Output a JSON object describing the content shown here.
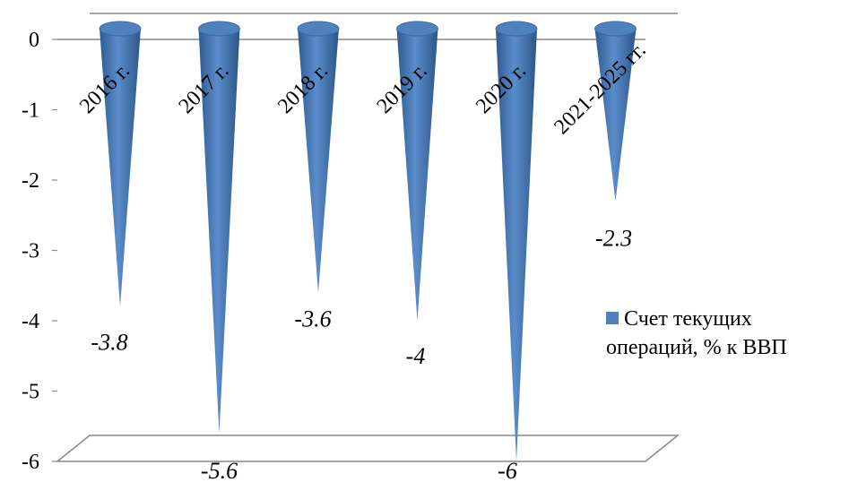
{
  "chart_data": {
    "type": "bar",
    "categories": [
      "2016 г.",
      "2017 г.",
      "2018 г.",
      "2019 г.",
      "2020 г.",
      "2021-2025 гг."
    ],
    "series": [
      {
        "name": "Счет текущих операций, % к ВВП",
        "values": [
          -3.8,
          -5.6,
          -3.6,
          -4,
          -6,
          -2.3
        ]
      }
    ],
    "data_labels": [
      "-3.8",
      "-5.6",
      "-3.6",
      "-4",
      "-6",
      "-2.3"
    ],
    "y_ticks": [
      "0",
      "-1",
      "-2",
      "-3",
      "-4",
      "-5",
      "-6"
    ],
    "ylim": [
      -6,
      0
    ],
    "shape": "cone",
    "grid": false,
    "legend_position": "right",
    "color": "#4F81BD"
  }
}
